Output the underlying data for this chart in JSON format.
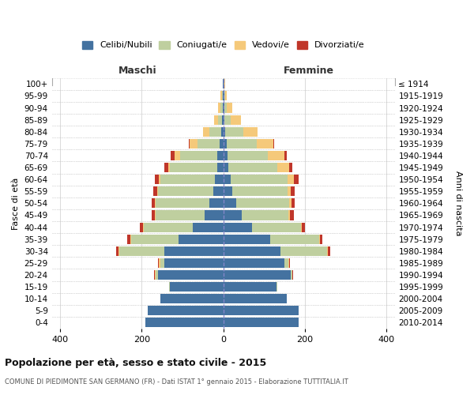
{
  "age_groups": [
    "0-4",
    "5-9",
    "10-14",
    "15-19",
    "20-24",
    "25-29",
    "30-34",
    "35-39",
    "40-44",
    "45-49",
    "50-54",
    "55-59",
    "60-64",
    "65-69",
    "70-74",
    "75-79",
    "80-84",
    "85-89",
    "90-94",
    "95-99",
    "100+"
  ],
  "birth_years": [
    "2010-2014",
    "2005-2009",
    "2000-2004",
    "1995-1999",
    "1990-1994",
    "1985-1989",
    "1980-1984",
    "1975-1979",
    "1970-1974",
    "1965-1969",
    "1960-1964",
    "1955-1959",
    "1950-1954",
    "1945-1949",
    "1940-1944",
    "1935-1939",
    "1930-1934",
    "1925-1929",
    "1920-1924",
    "1915-1919",
    "≤ 1914"
  ],
  "maschi_celibi": [
    190,
    185,
    155,
    130,
    160,
    145,
    145,
    110,
    75,
    45,
    35,
    25,
    20,
    15,
    15,
    8,
    5,
    3,
    2,
    2,
    2
  ],
  "maschi_coniugati": [
    0,
    0,
    0,
    2,
    5,
    10,
    110,
    115,
    120,
    120,
    130,
    135,
    135,
    115,
    90,
    55,
    30,
    10,
    5,
    2,
    0
  ],
  "maschi_vedovi": [
    0,
    0,
    0,
    0,
    2,
    2,
    2,
    2,
    2,
    2,
    2,
    2,
    3,
    5,
    15,
    20,
    15,
    10,
    5,
    2,
    0
  ],
  "maschi_divorziati": [
    0,
    0,
    0,
    0,
    2,
    2,
    5,
    8,
    8,
    8,
    8,
    10,
    10,
    10,
    8,
    2,
    0,
    0,
    0,
    0,
    0
  ],
  "femmine_celibi": [
    185,
    185,
    155,
    130,
    165,
    150,
    140,
    115,
    70,
    45,
    32,
    22,
    18,
    12,
    10,
    8,
    5,
    3,
    3,
    2,
    2
  ],
  "femmine_coniugati": [
    0,
    0,
    0,
    2,
    5,
    10,
    115,
    120,
    120,
    115,
    130,
    135,
    140,
    120,
    100,
    75,
    45,
    15,
    5,
    2,
    0
  ],
  "femmine_vedovi": [
    0,
    0,
    0,
    0,
    0,
    2,
    2,
    2,
    2,
    3,
    5,
    8,
    15,
    30,
    40,
    40,
    35,
    25,
    15,
    5,
    2
  ],
  "femmine_divorziati": [
    0,
    0,
    0,
    0,
    2,
    2,
    5,
    5,
    8,
    10,
    8,
    10,
    12,
    8,
    5,
    2,
    0,
    0,
    0,
    0,
    0
  ],
  "color_celibi": "#4472A0",
  "color_coniugati": "#BFCF9F",
  "color_vedovi": "#F5C97A",
  "color_divorziati": "#C0362A",
  "xlim": 420,
  "title": "Popolazione per età, sesso e stato civile - 2015",
  "subtitle": "COMUNE DI PIEDIMONTE SAN GERMANO (FR) - Dati ISTAT 1° gennaio 2015 - Elaborazione TUTTITALIA.IT",
  "ylabel": "Fasce di età",
  "ylabel_right": "Anni di nascita",
  "maschi_label": "Maschi",
  "femmine_label": "Femmine",
  "legend_labels": [
    "Celibi/Nubili",
    "Coniugati/e",
    "Vedovi/e",
    "Divorziati/e"
  ],
  "background_color": "#ffffff",
  "grid_color": "#cccccc"
}
